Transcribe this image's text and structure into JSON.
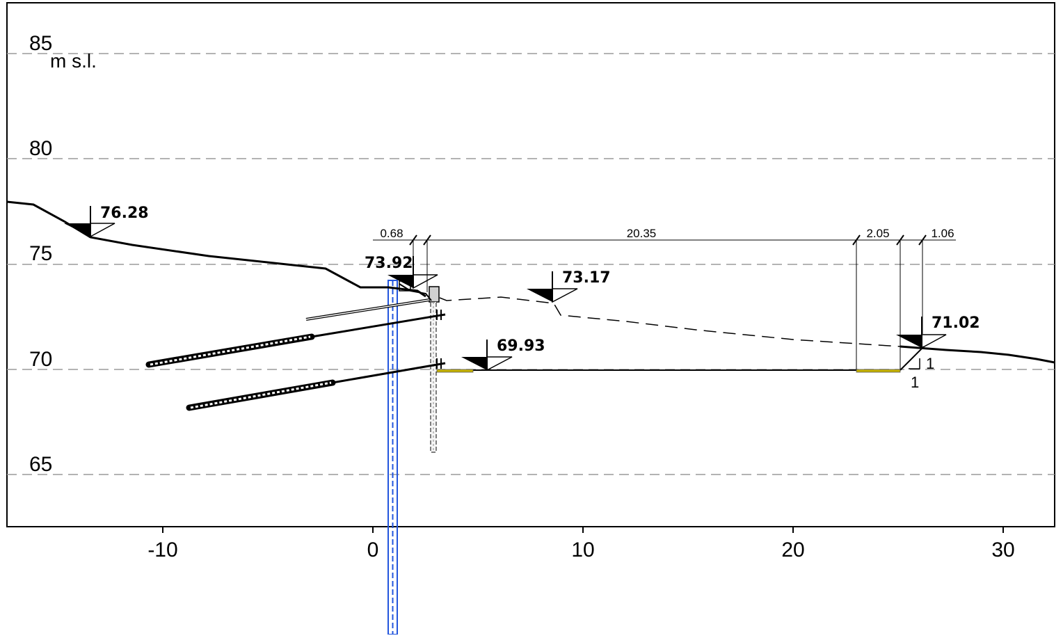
{
  "axes": {
    "unit_label": "m s.l.",
    "y_ticks": [
      {
        "value": 85,
        "label": "85"
      },
      {
        "value": 80,
        "label": "80"
      },
      {
        "value": 75,
        "label": "75"
      },
      {
        "value": 70,
        "label": "70"
      },
      {
        "value": 65,
        "label": "65"
      }
    ],
    "x_ticks": [
      {
        "value": -10,
        "label": "-10"
      },
      {
        "value": 0,
        "label": "0"
      },
      {
        "value": 10,
        "label": "10"
      },
      {
        "value": 20,
        "label": "20"
      },
      {
        "value": 30,
        "label": "30"
      }
    ]
  },
  "levels": [
    {
      "label": "76.28"
    },
    {
      "label": "73.92"
    },
    {
      "label": "73.17"
    },
    {
      "label": "69.93"
    },
    {
      "label": "71.02"
    }
  ],
  "dimensions": [
    {
      "label": "0.68"
    },
    {
      "label": "20.35"
    },
    {
      "label": "2.05"
    },
    {
      "label": "1.06"
    }
  ],
  "slope_labels": {
    "vertical": "1",
    "horizontal": "1"
  },
  "colors": {
    "ground": "#000000",
    "grid": "#9a9a9a",
    "borehole": "#2255dd",
    "pad": "#c8b400"
  }
}
